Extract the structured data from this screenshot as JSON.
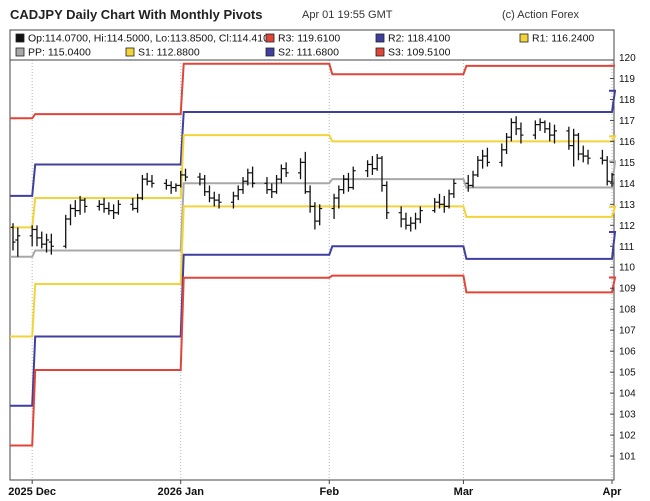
{
  "header": {
    "title": "CADJPY Daily Chart With Monthly Pivots",
    "timestamp": "Apr 01 19:55 GMT",
    "credit": "(c) Action Forex"
  },
  "chart_data": {
    "type": "ohlc-bar",
    "symbol": "CADJPY",
    "timeframe": "Daily",
    "ylim": [
      100,
      120.5
    ],
    "y_ticks": [
      101,
      102,
      103,
      104,
      105,
      106,
      107,
      108,
      109,
      110,
      111,
      112,
      113,
      114,
      115,
      116,
      117,
      118,
      119,
      120
    ],
    "x_ticks": [
      {
        "label": "2025 Dec",
        "bold": true,
        "date": "2025-12-01"
      },
      {
        "label": "2026 Jan",
        "bold": true,
        "date": "2026-01-01"
      },
      {
        "label": "Feb",
        "bold": false,
        "date": "2026-02-01"
      },
      {
        "label": "Mar",
        "bold": false,
        "date": "2026-03-01"
      },
      {
        "label": "Apr",
        "bold": false,
        "date": "2026-04-01"
      }
    ],
    "legend": [
      {
        "key": "ohlc",
        "text": "Op:114.0700, Hi:114.5000, Lo:113.8500, Cl:114.4100",
        "color": "#111111"
      },
      {
        "key": "r3",
        "text": "R3: 119.6100",
        "color": "#e0453a"
      },
      {
        "key": "r2",
        "text": "R2: 118.4100",
        "color": "#3f3fa0"
      },
      {
        "key": "r1",
        "text": "R1: 116.2400",
        "color": "#f2d43a"
      },
      {
        "key": "pp",
        "text": "PP: 115.0400",
        "color": "#a8a8a8"
      },
      {
        "key": "s1",
        "text": "S1: 112.8800",
        "color": "#f2d43a"
      },
      {
        "key": "s2",
        "text": "S2: 111.6800",
        "color": "#3f3fa0"
      },
      {
        "key": "s3",
        "text": "S3: 109.5100",
        "color": "#e0453a"
      }
    ],
    "pivots": {
      "colors": {
        "R3": "#e0453a",
        "R2": "#3f3fa0",
        "R1": "#f2d43a",
        "PP": "#a8a8a8",
        "S1": "#f2d43a",
        "S2": "#3f3fa0",
        "S3": "#e0453a"
      },
      "periods": [
        {
          "month": "2025-11",
          "R3": 117.1,
          "R2": 113.4,
          "R1": 111.9,
          "PP": 110.5,
          "S1": 106.7,
          "S2": 103.4,
          "S3": 101.5
        },
        {
          "month": "2025-12",
          "R3": 117.3,
          "R2": 114.9,
          "R1": 113.3,
          "PP": 110.8,
          "S1": 109.2,
          "S2": 106.7,
          "S3": 105.1
        },
        {
          "month": "2026-01",
          "R3": 119.7,
          "R2": 117.4,
          "R1": 116.3,
          "PP": 114.0,
          "S1": 112.9,
          "S2": 110.6,
          "S3": 109.5
        },
        {
          "month": "2026-02",
          "R3": 119.2,
          "R2": 117.4,
          "R1": 116.0,
          "PP": 114.2,
          "S1": 112.9,
          "S2": 111.0,
          "S3": 109.6
        },
        {
          "month": "2026-03",
          "R3": 119.6,
          "R2": 117.4,
          "R1": 116.0,
          "PP": 113.8,
          "S1": 112.4,
          "S2": 110.4,
          "S3": 108.8
        },
        {
          "month": "2026-04",
          "R3": 119.61,
          "R2": 118.41,
          "R1": 116.24,
          "PP": 115.04,
          "S1": 112.88,
          "S2": 111.68,
          "S3": 109.51
        }
      ]
    },
    "ohlc": [
      {
        "date": "2025-11-27",
        "o": 111.9,
        "h": 112.1,
        "l": 110.8,
        "c": 111.2
      },
      {
        "date": "2025-11-28",
        "o": 111.3,
        "h": 111.9,
        "l": 110.5,
        "c": 111.5
      },
      {
        "date": "2025-12-01",
        "o": 111.5,
        "h": 112.0,
        "l": 111.0,
        "c": 111.8
      },
      {
        "date": "2025-12-02",
        "o": 111.8,
        "h": 112.0,
        "l": 111.0,
        "c": 111.4
      },
      {
        "date": "2025-12-03",
        "o": 111.4,
        "h": 111.7,
        "l": 110.9,
        "c": 111.1
      },
      {
        "date": "2025-12-04",
        "o": 111.1,
        "h": 111.6,
        "l": 110.7,
        "c": 111.3
      },
      {
        "date": "2025-12-05",
        "o": 111.2,
        "h": 111.6,
        "l": 110.6,
        "c": 111.0
      },
      {
        "date": "2025-12-08",
        "o": 111.0,
        "h": 112.5,
        "l": 110.9,
        "c": 112.3
      },
      {
        "date": "2025-12-09",
        "o": 112.3,
        "h": 113.0,
        "l": 112.0,
        "c": 112.8
      },
      {
        "date": "2025-12-10",
        "o": 112.8,
        "h": 113.2,
        "l": 112.4,
        "c": 112.7
      },
      {
        "date": "2025-12-11",
        "o": 112.7,
        "h": 113.4,
        "l": 112.5,
        "c": 113.2
      },
      {
        "date": "2025-12-12",
        "o": 113.2,
        "h": 113.3,
        "l": 112.6,
        "c": 112.9
      },
      {
        "date": "2025-12-15",
        "o": 112.9,
        "h": 113.2,
        "l": 112.7,
        "c": 113.0
      },
      {
        "date": "2025-12-16",
        "o": 113.0,
        "h": 113.3,
        "l": 112.6,
        "c": 112.8
      },
      {
        "date": "2025-12-17",
        "o": 112.8,
        "h": 113.1,
        "l": 112.5,
        "c": 112.7
      },
      {
        "date": "2025-12-18",
        "o": 112.7,
        "h": 113.0,
        "l": 112.3,
        "c": 112.6
      },
      {
        "date": "2025-12-19",
        "o": 112.6,
        "h": 113.2,
        "l": 112.5,
        "c": 113.0
      },
      {
        "date": "2025-12-22",
        "o": 113.0,
        "h": 113.3,
        "l": 112.7,
        "c": 112.8
      },
      {
        "date": "2025-12-23",
        "o": 112.8,
        "h": 113.5,
        "l": 112.6,
        "c": 113.3
      },
      {
        "date": "2025-12-24",
        "o": 113.3,
        "h": 114.4,
        "l": 113.2,
        "c": 114.2
      },
      {
        "date": "2025-12-25",
        "o": 114.2,
        "h": 114.5,
        "l": 113.9,
        "c": 114.1
      },
      {
        "date": "2025-12-26",
        "o": 114.1,
        "h": 114.4,
        "l": 113.8,
        "c": 114.0
      },
      {
        "date": "2025-12-29",
        "o": 114.0,
        "h": 114.2,
        "l": 113.7,
        "c": 113.9
      },
      {
        "date": "2025-12-30",
        "o": 113.9,
        "h": 114.1,
        "l": 113.5,
        "c": 113.8
      },
      {
        "date": "2025-12-31",
        "o": 113.8,
        "h": 114.0,
        "l": 113.6,
        "c": 113.9
      },
      {
        "date": "2026-01-01",
        "o": 113.9,
        "h": 114.6,
        "l": 113.8,
        "c": 114.4
      },
      {
        "date": "2026-01-02",
        "o": 114.4,
        "h": 114.7,
        "l": 114.1,
        "c": 114.3
      },
      {
        "date": "2026-01-05",
        "o": 114.3,
        "h": 114.5,
        "l": 113.9,
        "c": 114.2
      },
      {
        "date": "2026-01-06",
        "o": 114.2,
        "h": 114.4,
        "l": 113.4,
        "c": 113.6
      },
      {
        "date": "2026-01-07",
        "o": 113.6,
        "h": 113.9,
        "l": 113.1,
        "c": 113.3
      },
      {
        "date": "2026-01-08",
        "o": 113.3,
        "h": 113.6,
        "l": 112.9,
        "c": 113.2
      },
      {
        "date": "2026-01-09",
        "o": 113.2,
        "h": 113.5,
        "l": 112.8,
        "c": 113.1
      },
      {
        "date": "2026-01-12",
        "o": 113.1,
        "h": 113.6,
        "l": 112.8,
        "c": 113.4
      },
      {
        "date": "2026-01-13",
        "o": 113.4,
        "h": 113.9,
        "l": 113.2,
        "c": 113.7
      },
      {
        "date": "2026-01-14",
        "o": 113.7,
        "h": 114.3,
        "l": 113.5,
        "c": 114.1
      },
      {
        "date": "2026-01-15",
        "o": 114.1,
        "h": 114.7,
        "l": 113.9,
        "c": 114.5
      },
      {
        "date": "2026-01-16",
        "o": 114.5,
        "h": 114.8,
        "l": 113.8,
        "c": 114.0
      },
      {
        "date": "2026-01-19",
        "o": 114.0,
        "h": 114.3,
        "l": 113.5,
        "c": 113.7
      },
      {
        "date": "2026-01-20",
        "o": 113.7,
        "h": 114.0,
        "l": 113.3,
        "c": 113.6
      },
      {
        "date": "2026-01-21",
        "o": 113.6,
        "h": 114.4,
        "l": 113.5,
        "c": 114.2
      },
      {
        "date": "2026-01-22",
        "o": 114.2,
        "h": 114.9,
        "l": 114.0,
        "c": 114.7
      },
      {
        "date": "2026-01-23",
        "o": 114.7,
        "h": 115.0,
        "l": 114.3,
        "c": 114.5
      },
      {
        "date": "2026-01-26",
        "o": 114.5,
        "h": 115.2,
        "l": 114.2,
        "c": 115.0
      },
      {
        "date": "2026-01-27",
        "o": 115.0,
        "h": 115.5,
        "l": 113.5,
        "c": 113.6
      },
      {
        "date": "2026-01-28",
        "o": 113.6,
        "h": 113.9,
        "l": 112.6,
        "c": 112.9
      },
      {
        "date": "2026-01-29",
        "o": 112.9,
        "h": 113.1,
        "l": 111.8,
        "c": 112.2
      },
      {
        "date": "2026-01-30",
        "o": 112.2,
        "h": 113.0,
        "l": 112.0,
        "c": 112.8
      },
      {
        "date": "2026-02-02",
        "o": 112.8,
        "h": 113.5,
        "l": 112.3,
        "c": 113.3
      },
      {
        "date": "2026-02-03",
        "o": 113.3,
        "h": 113.9,
        "l": 112.8,
        "c": 113.7
      },
      {
        "date": "2026-02-04",
        "o": 113.7,
        "h": 114.4,
        "l": 113.5,
        "c": 114.2
      },
      {
        "date": "2026-02-05",
        "o": 114.2,
        "h": 114.5,
        "l": 113.6,
        "c": 113.8
      },
      {
        "date": "2026-02-06",
        "o": 113.8,
        "h": 114.8,
        "l": 113.7,
        "c": 114.6
      },
      {
        "date": "2026-02-09",
        "o": 114.6,
        "h": 115.1,
        "l": 114.3,
        "c": 114.9
      },
      {
        "date": "2026-02-10",
        "o": 114.9,
        "h": 115.3,
        "l": 114.4,
        "c": 114.7
      },
      {
        "date": "2026-02-11",
        "o": 114.7,
        "h": 115.4,
        "l": 114.6,
        "c": 115.2
      },
      {
        "date": "2026-02-12",
        "o": 115.2,
        "h": 115.3,
        "l": 113.6,
        "c": 113.9
      },
      {
        "date": "2026-02-13",
        "o": 113.9,
        "h": 114.1,
        "l": 112.3,
        "c": 112.6
      },
      {
        "date": "2026-02-16",
        "o": 112.6,
        "h": 112.9,
        "l": 111.9,
        "c": 112.3
      },
      {
        "date": "2026-02-17",
        "o": 112.3,
        "h": 112.6,
        "l": 111.8,
        "c": 112.0
      },
      {
        "date": "2026-02-18",
        "o": 112.0,
        "h": 112.4,
        "l": 111.7,
        "c": 112.1
      },
      {
        "date": "2026-02-19",
        "o": 112.1,
        "h": 112.6,
        "l": 111.8,
        "c": 112.3
      },
      {
        "date": "2026-02-20",
        "o": 112.3,
        "h": 112.9,
        "l": 112.1,
        "c": 112.7
      },
      {
        "date": "2026-02-23",
        "o": 112.7,
        "h": 113.3,
        "l": 112.6,
        "c": 113.1
      },
      {
        "date": "2026-02-24",
        "o": 113.1,
        "h": 113.5,
        "l": 112.8,
        "c": 113.0
      },
      {
        "date": "2026-02-25",
        "o": 113.0,
        "h": 113.4,
        "l": 112.6,
        "c": 112.9
      },
      {
        "date": "2026-02-26",
        "o": 112.9,
        "h": 113.7,
        "l": 112.8,
        "c": 113.5
      },
      {
        "date": "2026-02-27",
        "o": 113.5,
        "h": 114.2,
        "l": 113.3,
        "c": 114.0
      },
      {
        "date": "2026-03-02",
        "o": 114.0,
        "h": 114.4,
        "l": 113.6,
        "c": 113.9
      },
      {
        "date": "2026-03-03",
        "o": 113.9,
        "h": 114.6,
        "l": 113.8,
        "c": 114.4
      },
      {
        "date": "2026-03-04",
        "o": 114.4,
        "h": 115.3,
        "l": 114.3,
        "c": 115.1
      },
      {
        "date": "2026-03-05",
        "o": 115.1,
        "h": 115.6,
        "l": 114.7,
        "c": 115.3
      },
      {
        "date": "2026-03-06",
        "o": 115.3,
        "h": 115.7,
        "l": 114.8,
        "c": 115.0
      },
      {
        "date": "2026-03-09",
        "o": 115.0,
        "h": 115.9,
        "l": 114.8,
        "c": 115.6
      },
      {
        "date": "2026-03-10",
        "o": 115.6,
        "h": 116.4,
        "l": 115.4,
        "c": 116.2
      },
      {
        "date": "2026-03-11",
        "o": 116.2,
        "h": 117.1,
        "l": 116.0,
        "c": 116.9
      },
      {
        "date": "2026-03-12",
        "o": 116.9,
        "h": 117.2,
        "l": 116.3,
        "c": 116.6
      },
      {
        "date": "2026-03-13",
        "o": 116.6,
        "h": 116.9,
        "l": 115.9,
        "c": 116.3
      },
      {
        "date": "2026-03-16",
        "o": 116.3,
        "h": 117.0,
        "l": 116.1,
        "c": 116.8
      },
      {
        "date": "2026-03-17",
        "o": 116.8,
        "h": 117.1,
        "l": 116.5,
        "c": 116.9
      },
      {
        "date": "2026-03-18",
        "o": 116.9,
        "h": 117.0,
        "l": 116.4,
        "c": 116.6
      },
      {
        "date": "2026-03-19",
        "o": 116.6,
        "h": 116.9,
        "l": 116.0,
        "c": 116.3
      },
      {
        "date": "2026-03-20",
        "o": 116.3,
        "h": 116.8,
        "l": 115.9,
        "c": 116.5
      },
      {
        "date": "2026-03-23",
        "o": 116.5,
        "h": 116.7,
        "l": 115.6,
        "c": 115.8
      },
      {
        "date": "2026-03-24",
        "o": 115.8,
        "h": 116.6,
        "l": 114.8,
        "c": 116.3
      },
      {
        "date": "2026-03-25",
        "o": 116.3,
        "h": 116.4,
        "l": 115.1,
        "c": 115.4
      },
      {
        "date": "2026-03-26",
        "o": 115.4,
        "h": 115.8,
        "l": 115.0,
        "c": 115.3
      },
      {
        "date": "2026-03-27",
        "o": 115.3,
        "h": 115.6,
        "l": 114.9,
        "c": 115.2
      },
      {
        "date": "2026-03-30",
        "o": 115.2,
        "h": 115.6,
        "l": 114.9,
        "c": 115.1
      },
      {
        "date": "2026-03-31",
        "o": 115.1,
        "h": 115.3,
        "l": 113.9,
        "c": 114.1
      },
      {
        "date": "2026-04-01",
        "o": 114.07,
        "h": 114.5,
        "l": 113.85,
        "c": 114.41
      }
    ]
  }
}
